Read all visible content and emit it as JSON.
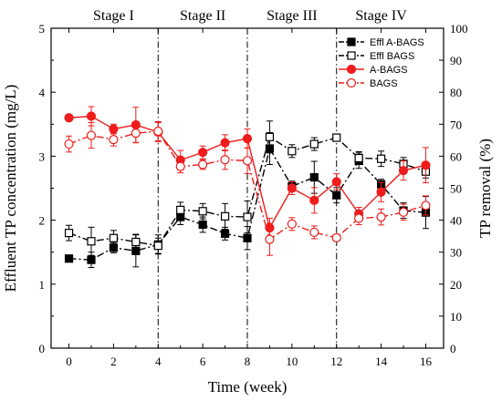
{
  "chart_data": {
    "type": "line",
    "stages": [
      {
        "label": "Stage I",
        "x": 2
      },
      {
        "label": "Stage II",
        "x": 6
      },
      {
        "label": "Stage III",
        "x": 10
      },
      {
        "label": "Stage IV",
        "x": 14
      }
    ],
    "stage_dividers": [
      4,
      8,
      12
    ],
    "x": [
      0,
      1,
      2,
      3,
      4,
      5,
      6,
      7,
      8,
      9,
      10,
      11,
      12,
      13,
      14,
      15,
      16
    ],
    "xlabel": "Time (week)",
    "xlim": [
      -0.8,
      16.8
    ],
    "xticks": [
      0,
      2,
      4,
      6,
      8,
      10,
      12,
      14,
      16
    ],
    "ylabel_left": "Effluent TP concentration (mg/L)",
    "ylim_left": [
      0,
      5
    ],
    "yticks_left": [
      0,
      1,
      2,
      3,
      4,
      5
    ],
    "ylabel_right": "TP removal (%)",
    "ylim_right": [
      0,
      100
    ],
    "yticks_right": [
      0,
      10,
      20,
      30,
      40,
      50,
      60,
      70,
      80,
      90,
      100
    ],
    "legend_position": "top-right",
    "series": [
      {
        "name": "Effl A-BAGS",
        "axis": "left",
        "color": "#000000",
        "marker": "square",
        "fill": true,
        "line": "dash-dot",
        "values": [
          1.4,
          1.38,
          1.57,
          1.52,
          1.62,
          2.05,
          1.93,
          1.79,
          1.72,
          3.12,
          2.53,
          2.67,
          2.39,
          2.93,
          2.56,
          2.15,
          2.12
        ],
        "errors": [
          0.05,
          0.12,
          0.08,
          0.25,
          0.15,
          0.12,
          0.12,
          0.1,
          0.18,
          0.25,
          0.08,
          0.25,
          0.12,
          0.12,
          0.08,
          0.12,
          0.25
        ]
      },
      {
        "name": "Effl BAGS",
        "axis": "left",
        "color": "#000000",
        "marker": "square",
        "fill": false,
        "line": "dash-dot",
        "values": [
          1.8,
          1.67,
          1.72,
          1.66,
          1.6,
          2.16,
          2.14,
          2.06,
          2.05,
          3.3,
          3.08,
          3.19,
          3.29,
          2.97,
          2.96,
          2.88,
          2.76
        ],
        "errors": [
          0.12,
          0.22,
          0.12,
          0.12,
          0.12,
          0.12,
          0.12,
          0.2,
          0.25,
          0.25,
          0.1,
          0.1,
          0.05,
          0.1,
          0.12,
          0.1,
          0.1
        ]
      },
      {
        "name": "A-BAGS",
        "axis": "right",
        "color": "#ee1c1c",
        "marker": "circle",
        "fill": true,
        "line": "solid",
        "values": [
          72.0,
          72.5,
          68.5,
          69.8,
          67.5,
          58.8,
          61.2,
          64.2,
          65.5,
          37.6,
          50.0,
          46.2,
          52.0,
          42.0,
          48.8,
          55.5,
          57.2
        ],
        "errors": [
          1.0,
          3.0,
          1.5,
          5.5,
          3.0,
          3.0,
          2.0,
          2.5,
          3.0,
          3.0,
          2.0,
          4.0,
          2.5,
          2.0,
          3.0,
          3.0,
          5.5
        ]
      },
      {
        "name": "BAGS",
        "axis": "right",
        "color": "#ee1c1c",
        "marker": "circle",
        "fill": false,
        "line": "dash-dot",
        "values": [
          63.8,
          66.5,
          65.2,
          67.2,
          67.8,
          56.8,
          57.4,
          58.9,
          58.6,
          34.0,
          38.8,
          36.2,
          34.5,
          40.6,
          41.0,
          42.5,
          44.6
        ],
        "errors": [
          2.5,
          4.0,
          2.0,
          3.0,
          3.0,
          2.0,
          1.5,
          3.0,
          4.0,
          5.0,
          2.0,
          2.0,
          1.0,
          2.0,
          2.5,
          2.5,
          3.0
        ]
      }
    ]
  }
}
